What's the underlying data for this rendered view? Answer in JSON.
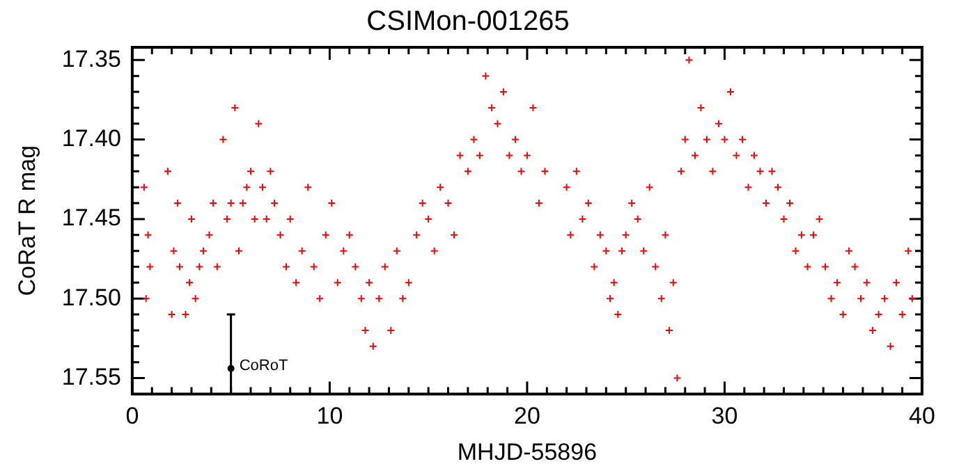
{
  "chart_data": {
    "type": "scatter",
    "title": "CSIMon-001265",
    "xlabel": "MHJD-55896",
    "ylabel": "CoRaT R mag",
    "xlim": [
      0,
      40
    ],
    "xticks": [
      0,
      {
        "value": 1,
        "label": null
      },
      {
        "value": 2,
        "label": null
      },
      {
        "value": 3,
        "label": null
      },
      {
        "value": 4,
        "label": null
      },
      {
        "value": 5,
        "label": null
      },
      {
        "value": 6,
        "label": null
      },
      {
        "value": 7,
        "label": null
      },
      {
        "value": 8,
        "label": null
      },
      {
        "value": 9,
        "label": null
      },
      10,
      {
        "value": 11,
        "label": null
      },
      {
        "value": 12,
        "label": null
      },
      {
        "value": 13,
        "label": null
      },
      {
        "value": 14,
        "label": null
      },
      {
        "value": 15,
        "label": null
      },
      {
        "value": 16,
        "label": null
      },
      {
        "value": 17,
        "label": null
      },
      {
        "value": 18,
        "label": null
      },
      {
        "value": 19,
        "label": null
      },
      20,
      {
        "value": 21,
        "label": null
      },
      {
        "value": 22,
        "label": null
      },
      {
        "value": 23,
        "label": null
      },
      {
        "value": 24,
        "label": null
      },
      {
        "value": 25,
        "label": null
      },
      {
        "value": 26,
        "label": null
      },
      {
        "value": 27,
        "label": null
      },
      {
        "value": 28,
        "label": null
      },
      {
        "value": 29,
        "label": null
      },
      30,
      {
        "value": 31,
        "label": null
      },
      {
        "value": 32,
        "label": null
      },
      {
        "value": 33,
        "label": null
      },
      {
        "value": 34,
        "label": null
      },
      {
        "value": 35,
        "label": null
      },
      {
        "value": 36,
        "label": null
      },
      {
        "value": 37,
        "label": null
      },
      {
        "value": 38,
        "label": null
      },
      {
        "value": 39,
        "label": null
      },
      40
    ],
    "ylim": [
      17.56,
      17.342
    ],
    "yticks": [
      17.35,
      {
        "value": 17.36,
        "label": null
      },
      {
        "value": 17.37,
        "label": null
      },
      {
        "value": 17.38,
        "label": null
      },
      {
        "value": 17.39,
        "label": null
      },
      {
        "value": 17.4,
        "label": "17.40"
      },
      {
        "value": 17.41,
        "label": null
      },
      {
        "value": 17.42,
        "label": null
      },
      {
        "value": 17.43,
        "label": null
      },
      {
        "value": 17.44,
        "label": null
      },
      17.45,
      {
        "value": 17.46,
        "label": null
      },
      {
        "value": 17.47,
        "label": null
      },
      {
        "value": 17.48,
        "label": null
      },
      {
        "value": 17.49,
        "label": null
      },
      {
        "value": 17.5,
        "label": "17.50"
      },
      {
        "value": 17.51,
        "label": null
      },
      {
        "value": 17.52,
        "label": null
      },
      {
        "value": 17.53,
        "label": null
      },
      {
        "value": 17.54,
        "label": null
      },
      17.55
    ],
    "grid": false,
    "legend": false,
    "marker": "cross",
    "annotations": [
      {
        "text": "CoRoT",
        "x": 5,
        "y": 17.544
      }
    ],
    "series": [
      {
        "color": "#ff0000",
        "x": [
          0.6,
          0.7,
          0.8,
          0.9,
          1.8,
          2.0,
          2.1,
          2.3,
          2.4,
          2.7,
          2.9,
          3.0,
          3.2,
          3.4,
          3.6,
          3.9,
          4.1,
          4.3,
          4.6,
          4.8,
          5.0,
          5.2,
          5.4,
          5.6,
          5.8,
          6.0,
          6.2,
          6.4,
          6.6,
          6.8,
          7.0,
          7.2,
          7.5,
          7.8,
          8.0,
          8.3,
          8.6,
          8.9,
          9.2,
          9.5,
          9.8,
          10.1,
          10.4,
          10.7,
          11.0,
          11.3,
          11.6,
          11.8,
          12.0,
          12.2,
          12.5,
          12.8,
          13.1,
          13.4,
          13.7,
          14.0,
          14.4,
          14.7,
          15.0,
          15.3,
          15.6,
          16.0,
          16.3,
          16.6,
          17.0,
          17.3,
          17.6,
          17.9,
          18.2,
          18.5,
          18.8,
          19.1,
          19.4,
          19.7,
          20.0,
          20.3,
          20.6,
          20.9,
          22.0,
          22.2,
          22.5,
          22.8,
          23.1,
          23.4,
          23.7,
          24.0,
          24.2,
          24.4,
          24.6,
          24.8,
          25.0,
          25.3,
          25.6,
          25.9,
          26.2,
          26.5,
          26.8,
          27.0,
          27.2,
          27.4,
          27.6,
          27.8,
          28.0,
          28.2,
          28.5,
          28.8,
          29.1,
          29.4,
          29.7,
          30.0,
          30.3,
          30.6,
          30.9,
          31.2,
          31.5,
          31.8,
          32.1,
          32.4,
          32.7,
          33.0,
          33.3,
          33.6,
          33.9,
          34.2,
          34.5,
          34.8,
          35.1,
          35.4,
          35.7,
          36.0,
          36.3,
          36.6,
          36.9,
          37.2,
          37.5,
          37.8,
          38.1,
          38.4,
          38.7,
          39.0,
          39.3,
          39.5
        ],
        "values": [
          17.43,
          17.5,
          17.46,
          17.48,
          17.42,
          17.51,
          17.47,
          17.44,
          17.48,
          17.51,
          17.49,
          17.45,
          17.5,
          17.48,
          17.47,
          17.46,
          17.44,
          17.48,
          17.4,
          17.45,
          17.44,
          17.38,
          17.47,
          17.44,
          17.43,
          17.42,
          17.45,
          17.39,
          17.43,
          17.45,
          17.42,
          17.44,
          17.46,
          17.48,
          17.45,
          17.49,
          17.47,
          17.43,
          17.48,
          17.5,
          17.46,
          17.44,
          17.49,
          17.47,
          17.46,
          17.48,
          17.5,
          17.52,
          17.49,
          17.53,
          17.5,
          17.48,
          17.52,
          17.47,
          17.5,
          17.49,
          17.46,
          17.44,
          17.45,
          17.47,
          17.43,
          17.44,
          17.46,
          17.41,
          17.42,
          17.4,
          17.41,
          17.36,
          17.38,
          17.39,
          17.37,
          17.41,
          17.4,
          17.42,
          17.41,
          17.38,
          17.44,
          17.42,
          17.43,
          17.46,
          17.42,
          17.45,
          17.44,
          17.48,
          17.46,
          17.47,
          17.5,
          17.49,
          17.51,
          17.47,
          17.46,
          17.44,
          17.45,
          17.47,
          17.43,
          17.48,
          17.5,
          17.46,
          17.52,
          17.49,
          17.55,
          17.42,
          17.4,
          17.35,
          17.41,
          17.38,
          17.4,
          17.42,
          17.39,
          17.4,
          17.37,
          17.41,
          17.4,
          17.43,
          17.41,
          17.42,
          17.44,
          17.42,
          17.43,
          17.45,
          17.44,
          17.47,
          17.46,
          17.48,
          17.46,
          17.45,
          17.48,
          17.5,
          17.49,
          17.51,
          17.47,
          17.48,
          17.5,
          17.49,
          17.52,
          17.51,
          17.5,
          17.53,
          17.49,
          17.51,
          17.47,
          17.5
        ]
      },
      {
        "color": "#000000",
        "marker": "circle",
        "x": [
          5
        ],
        "values": [
          17.544
        ],
        "errors": [
          [
            17.51,
            17.56
          ]
        ]
      }
    ]
  }
}
